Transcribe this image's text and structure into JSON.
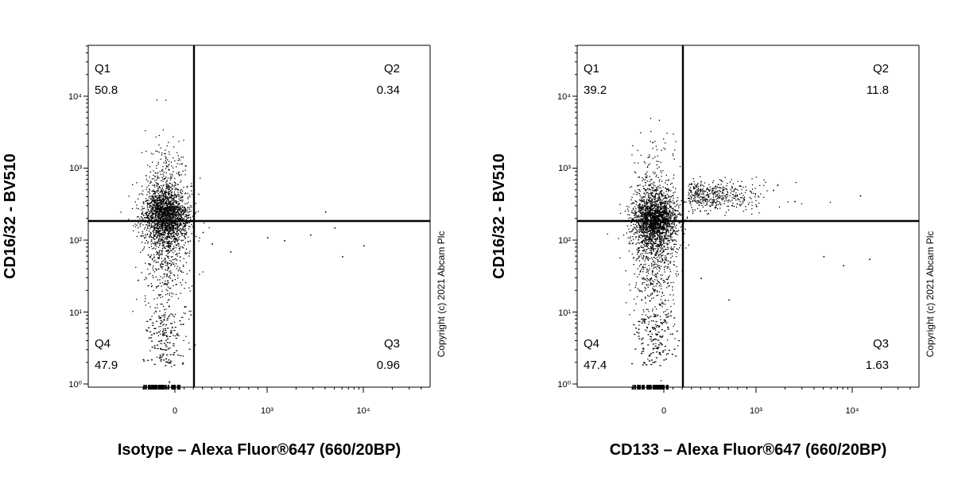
{
  "chart_data": [
    {
      "type": "scatter",
      "xlabel": "Isotype – Alexa Fluor®647 (660/20BP)",
      "ylabel": "CD16/32 - BV510",
      "x_ticks": [
        "0",
        "10³",
        "10⁴"
      ],
      "y_ticks": [
        "10⁰",
        "10¹",
        "10²",
        "10³",
        "10⁴"
      ],
      "x_gate": 200,
      "y_gate": 180,
      "quadrants": [
        {
          "name": "Q1",
          "value": "50.8"
        },
        {
          "name": "Q2",
          "value": "0.34"
        },
        {
          "name": "Q3",
          "value": "0.96"
        },
        {
          "name": "Q4",
          "value": "47.9"
        }
      ],
      "copyright": "Copyright (c) 2021 Abcam Plc",
      "population": {
        "x_center": 0,
        "y_center": 300,
        "outliers_x": [
          300,
          400,
          600,
          1000,
          1500,
          2800,
          4000,
          5000,
          10000,
          6000
        ],
        "outliers_y": [
          130,
          90,
          70,
          110,
          100,
          120,
          250,
          150,
          85,
          60
        ]
      }
    },
    {
      "type": "scatter",
      "xlabel": "CD133 – Alexa Fluor®647 (660/20BP)",
      "ylabel": "CD16/32 - BV510",
      "x_ticks": [
        "0",
        "10³",
        "10⁴"
      ],
      "y_ticks": [
        "10⁰",
        "10¹",
        "10²",
        "10³",
        "10⁴"
      ],
      "x_gate": 200,
      "y_gate": 180,
      "quadrants": [
        {
          "name": "Q1",
          "value": "39.2"
        },
        {
          "name": "Q2",
          "value": "11.8"
        },
        {
          "name": "Q3",
          "value": "1.63"
        },
        {
          "name": "Q4",
          "value": "47.4"
        }
      ],
      "copyright": "Copyright (c) 2021 Abcam Plc",
      "population": {
        "x_center": 0,
        "y_center": 250,
        "outliers_x": [
          600,
          1000,
          1500,
          2500,
          5000,
          8000,
          15000,
          12000,
          700,
          400
        ],
        "outliers_y": [
          400,
          300,
          500,
          350,
          60,
          45,
          55,
          420,
          15,
          30
        ]
      }
    }
  ]
}
